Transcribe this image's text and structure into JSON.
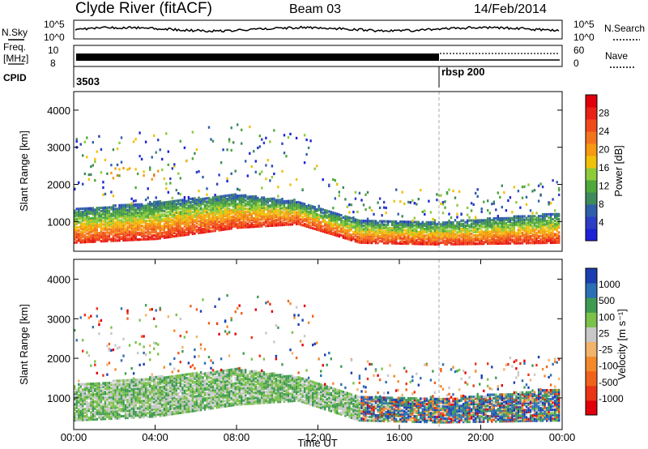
{
  "header": {
    "station": "Clyde River (fitACF)",
    "beam": "Beam 03",
    "date": "14/Feb/2014"
  },
  "strip_noise": {
    "left_label": "N.Sky",
    "right_label": "N.Search",
    "left_ticks": [
      "10^5",
      "10^0"
    ],
    "right_ticks": [
      "10^5",
      "10^0"
    ]
  },
  "strip_freq": {
    "left_label_line1": "Freq.",
    "left_label_line2": "[MHz]",
    "left_ticks": [
      "10",
      "8"
    ],
    "right_ticks": [
      "60",
      "0"
    ],
    "right_label": "Nave"
  },
  "strip_cpid": {
    "label": "CPID",
    "values": [
      {
        "text": "3503",
        "time_h": 0
      },
      {
        "text": "rbsp 200",
        "time_h": 18
      }
    ]
  },
  "colors": {
    "power_scale": [
      "#1d22d6",
      "#2b3ec4",
      "#2f5fa8",
      "#3e8a5c",
      "#4fa83a",
      "#8ecb3a",
      "#f0c10b",
      "#f59a12",
      "#f2741e",
      "#f04a1b",
      "#ea2117",
      "#e0000c"
    ],
    "velocity_scale": [
      "#1b3fb0",
      "#2c6fb5",
      "#3f9b52",
      "#7cc14a",
      "#c8c8c8",
      "#f2b36a",
      "#f28a2a",
      "#f0631c",
      "#e93415",
      "#e0000c"
    ]
  },
  "chart_data": [
    {
      "type": "heatmap",
      "name": "power",
      "title": "",
      "ylabel": "Slant Range [km]",
      "y_ticks": [
        "1000",
        "2000",
        "3000",
        "4000"
      ],
      "ylim": [
        200,
        4500
      ],
      "xlim": [
        0,
        24
      ],
      "colorbar": {
        "label": "Power [dB]",
        "ticks": [
          "4",
          "8",
          "12",
          "16",
          "20",
          "24",
          "28"
        ],
        "range": [
          0,
          32
        ]
      },
      "main_echo_band_km": [
        {
          "time_h": 0,
          "low": 400,
          "high": 1300
        },
        {
          "time_h": 4,
          "low": 500,
          "high": 1500
        },
        {
          "time_h": 8,
          "low": 800,
          "high": 1700
        },
        {
          "time_h": 11,
          "low": 900,
          "high": 1500
        },
        {
          "time_h": 14,
          "low": 400,
          "high": 1000
        },
        {
          "time_h": 18,
          "low": 350,
          "high": 950
        },
        {
          "time_h": 24,
          "low": 400,
          "high": 1200
        }
      ]
    },
    {
      "type": "heatmap",
      "name": "velocity",
      "title": "",
      "xlabel": "Time UT",
      "x_ticks": [
        "00:00",
        "04:00",
        "08:00",
        "12:00",
        "16:00",
        "20:00",
        "00:00"
      ],
      "ylabel": "Slant Range [km]",
      "y_ticks": [
        "1000",
        "2000",
        "3000",
        "4000"
      ],
      "ylim": [
        200,
        4500
      ],
      "xlim": [
        0,
        24
      ],
      "colorbar": {
        "label": "Velocity [m s⁻¹]",
        "ticks": [
          "1000",
          "500",
          "100",
          "25",
          "-25",
          "-100",
          "-500",
          "-1000"
        ]
      }
    }
  ]
}
